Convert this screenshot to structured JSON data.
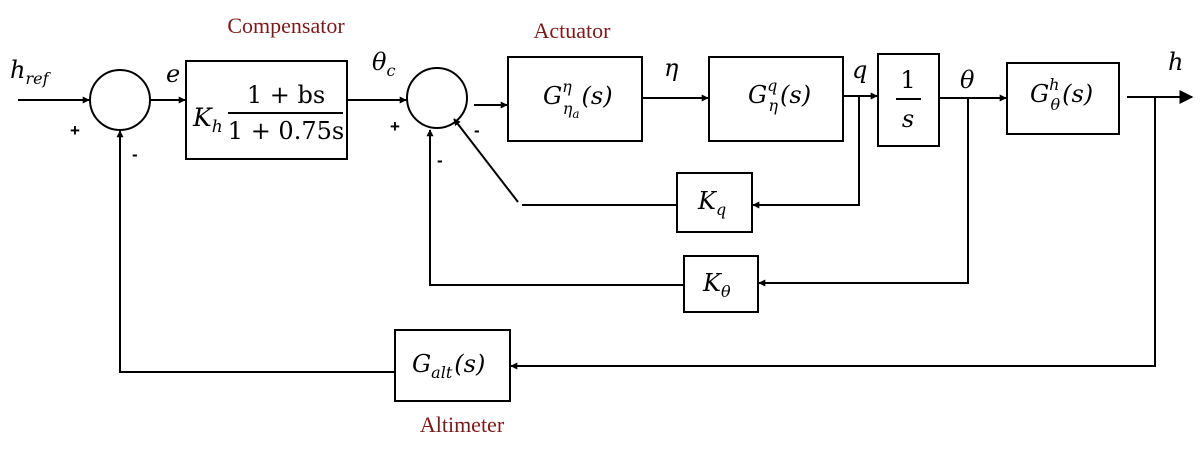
{
  "labels": {
    "compensator": "Compensator",
    "actuator": "Actuator",
    "altimeter": "Altimeter",
    "caption_color": "#7b1a1a"
  },
  "signals": {
    "href_main": "h",
    "href_sub": "ref",
    "e": "e",
    "theta_c_main": "θ",
    "theta_c_sub": "c",
    "eta": "η",
    "q": "q",
    "theta": "θ",
    "h": "h"
  },
  "signs": {
    "s1_plus": "+",
    "s1_minus": "-",
    "s2_plus": "+",
    "s2_minus_q": "-",
    "s2_minus_theta": "-"
  },
  "blocks": {
    "compensator": {
      "gain_main": "K",
      "gain_sub": "h",
      "numerator": "1 + bs",
      "denominator": "1 + 0.75s"
    },
    "actuator": {
      "main": "G",
      "sup": "η",
      "sub_main": "η",
      "sub_sub": "a",
      "arg": "(s)"
    },
    "pitch_rate": {
      "main": "G",
      "sup": "q",
      "sub": "η",
      "arg": "(s)"
    },
    "integrator": {
      "numerator": "1",
      "denominator": "s"
    },
    "altitude": {
      "main": "G",
      "sup": "h",
      "sub": "θ",
      "arg": "(s)"
    },
    "kq": {
      "main": "K",
      "sub": "q"
    },
    "ktheta": {
      "main": "K",
      "sub": "θ"
    },
    "altimeter": {
      "main": "G",
      "sub": "alt",
      "arg": "(s)"
    }
  }
}
